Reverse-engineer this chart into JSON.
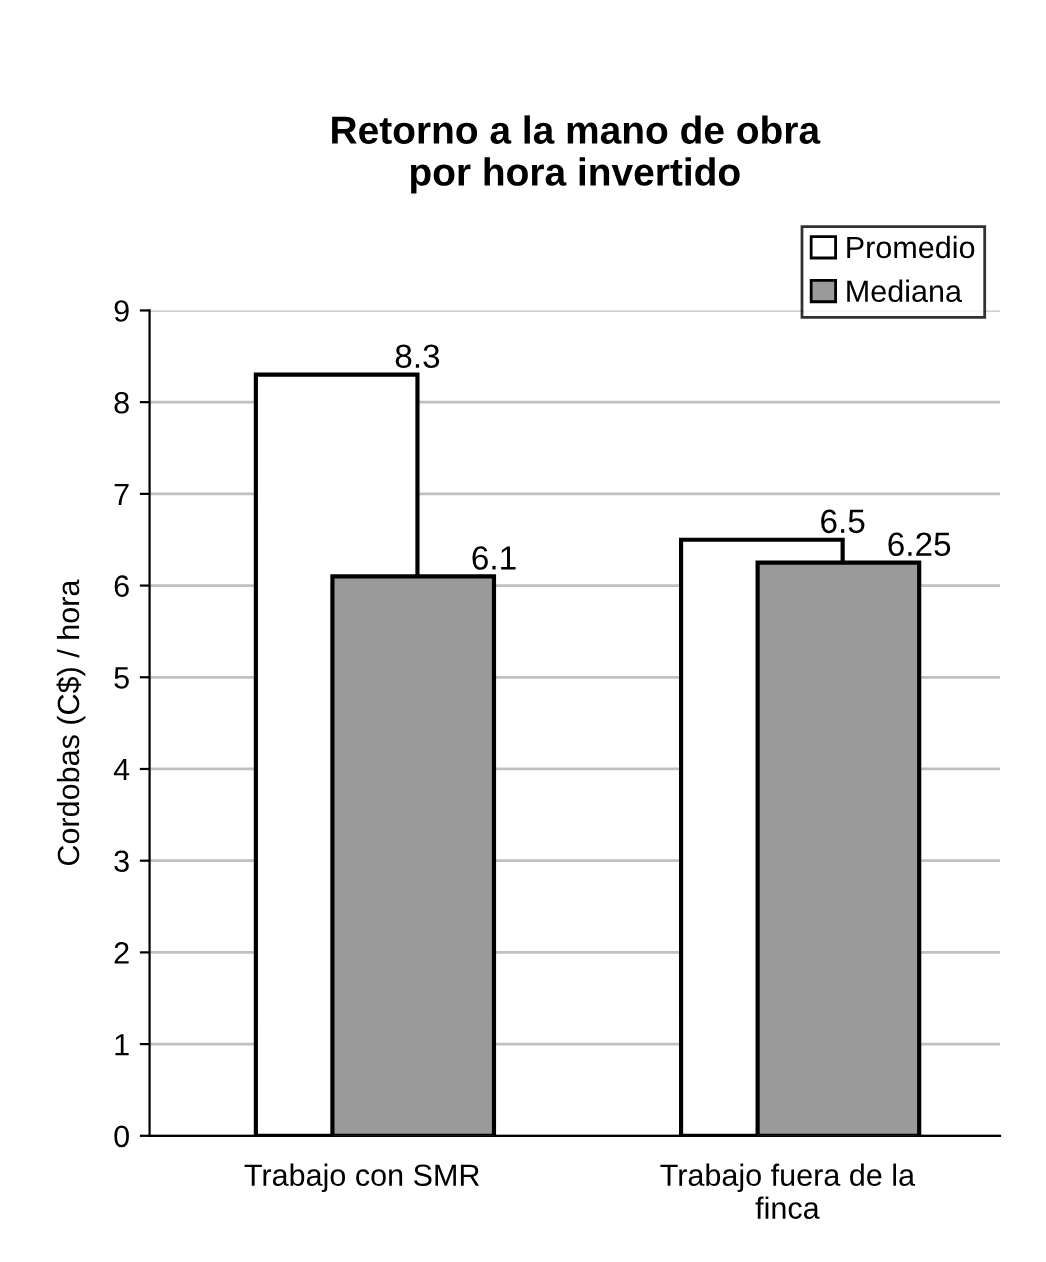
{
  "chart_data": {
    "type": "bar",
    "title": "Retorno a la mano de obra\npor hora invertido",
    "ylabel": "Cordobas (C$) / hora",
    "categories": [
      "Trabajo con SMR",
      "Trabajo fuera de la\nfinca"
    ],
    "series": [
      {
        "name": "Promedio",
        "color": "#ffffff",
        "values": [
          8.3,
          6.5
        ]
      },
      {
        "name": "Mediana",
        "color": "#9a9a9a",
        "values": [
          6.1,
          6.25
        ]
      }
    ],
    "ylim": [
      0,
      9
    ],
    "yticks": [
      0,
      1,
      2,
      3,
      4,
      5,
      6,
      7,
      8,
      9
    ],
    "grid": "y",
    "legend": "top right",
    "data_labels": true
  }
}
